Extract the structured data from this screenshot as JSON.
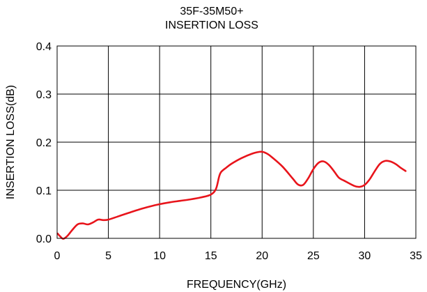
{
  "chart_data": {
    "type": "line",
    "title_lines": [
      "35F-35M50+",
      "INSERTION LOSS"
    ],
    "xlabel": "FREQUENCY(GHz)",
    "ylabel": "INSERTION LOSS(dB)",
    "xlim": [
      0,
      35
    ],
    "ylim": [
      0,
      0.4
    ],
    "xticks": [
      0,
      5,
      10,
      15,
      20,
      25,
      30,
      35
    ],
    "xtick_labels": [
      "0",
      "5",
      "10",
      "15",
      "20",
      "25",
      "30",
      "35"
    ],
    "yticks": [
      0.0,
      0.1,
      0.2,
      0.3,
      0.4
    ],
    "ytick_labels": [
      "0.0",
      "0.1",
      "0.2",
      "0.3",
      "0.4"
    ],
    "grid": true,
    "legend": "none",
    "series": [
      {
        "color": "#e8141b",
        "x": [
          0.05,
          0.3,
          0.6,
          1.0,
          1.5,
          2.0,
          2.5,
          3.0,
          3.5,
          4.0,
          4.5,
          5.0,
          6.0,
          7.0,
          8.0,
          9.0,
          10.0,
          11.0,
          12.0,
          13.0,
          14.0,
          15.0,
          15.5,
          15.8,
          16.0,
          16.5,
          17.0,
          18.0,
          19.0,
          19.5,
          20.0,
          20.5,
          21.0,
          22.0,
          23.0,
          23.5,
          24.0,
          24.5,
          25.0,
          25.5,
          26.0,
          26.5,
          27.0,
          27.5,
          28.0,
          29.0,
          29.5,
          30.0,
          30.5,
          31.0,
          31.5,
          32.0,
          32.5,
          33.0,
          33.5,
          34.0
        ],
        "y": [
          0.01,
          0.004,
          -0.001,
          0.005,
          0.018,
          0.029,
          0.031,
          0.029,
          0.033,
          0.039,
          0.038,
          0.039,
          0.046,
          0.053,
          0.06,
          0.066,
          0.071,
          0.075,
          0.078,
          0.081,
          0.085,
          0.091,
          0.103,
          0.128,
          0.138,
          0.147,
          0.155,
          0.167,
          0.176,
          0.179,
          0.18,
          0.176,
          0.168,
          0.149,
          0.124,
          0.112,
          0.111,
          0.125,
          0.144,
          0.157,
          0.16,
          0.153,
          0.14,
          0.126,
          0.12,
          0.109,
          0.107,
          0.111,
          0.123,
          0.14,
          0.155,
          0.161,
          0.16,
          0.155,
          0.147,
          0.14
        ]
      }
    ]
  }
}
